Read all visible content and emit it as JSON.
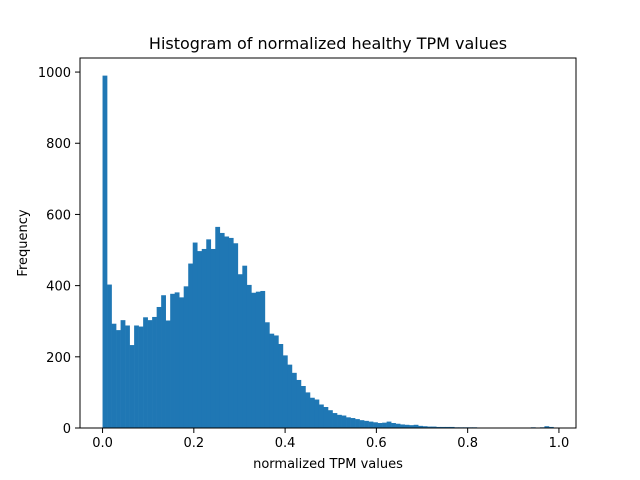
{
  "chart_data": {
    "type": "bar",
    "title": "Histogram of normalized healthy TPM values",
    "xlabel": "normalized TPM values",
    "ylabel": "Frequency",
    "xlim": [
      -0.0494,
      1.0374
    ],
    "ylim": [
      0,
      1039.5
    ],
    "xticks": [
      0.0,
      0.2,
      0.4,
      0.6,
      0.8,
      1.0
    ],
    "xtick_labels": [
      "0.0",
      "0.2",
      "0.4",
      "0.6",
      "0.8",
      "1.0"
    ],
    "yticks": [
      0,
      200,
      400,
      600,
      800,
      1000
    ],
    "ytick_labels": [
      "0",
      "200",
      "400",
      "600",
      "800",
      "1000"
    ],
    "bar_color": "#1f77b4",
    "grid": false,
    "bin_start": 0.0,
    "bin_width": 0.00988,
    "values": [
      990,
      403,
      293,
      275,
      303,
      288,
      233,
      288,
      285,
      311,
      303,
      312,
      340,
      373,
      302,
      377,
      381,
      367,
      398,
      462,
      521,
      497,
      503,
      530,
      503,
      565,
      548,
      538,
      534,
      519,
      432,
      456,
      402,
      380,
      383,
      385,
      297,
      265,
      260,
      236,
      204,
      178,
      155,
      135,
      118,
      100,
      85,
      80,
      66,
      59,
      50,
      42,
      37,
      35,
      30,
      28,
      25,
      22,
      20,
      18,
      16,
      14,
      15,
      18,
      14,
      12,
      10,
      9,
      8,
      9,
      6,
      5,
      4,
      4,
      3,
      3,
      3,
      3,
      2,
      2,
      2,
      2,
      2,
      1,
      1,
      1,
      1,
      1,
      1,
      1,
      1,
      1,
      1,
      1,
      1,
      2,
      1,
      2,
      5,
      3,
      1
    ]
  }
}
